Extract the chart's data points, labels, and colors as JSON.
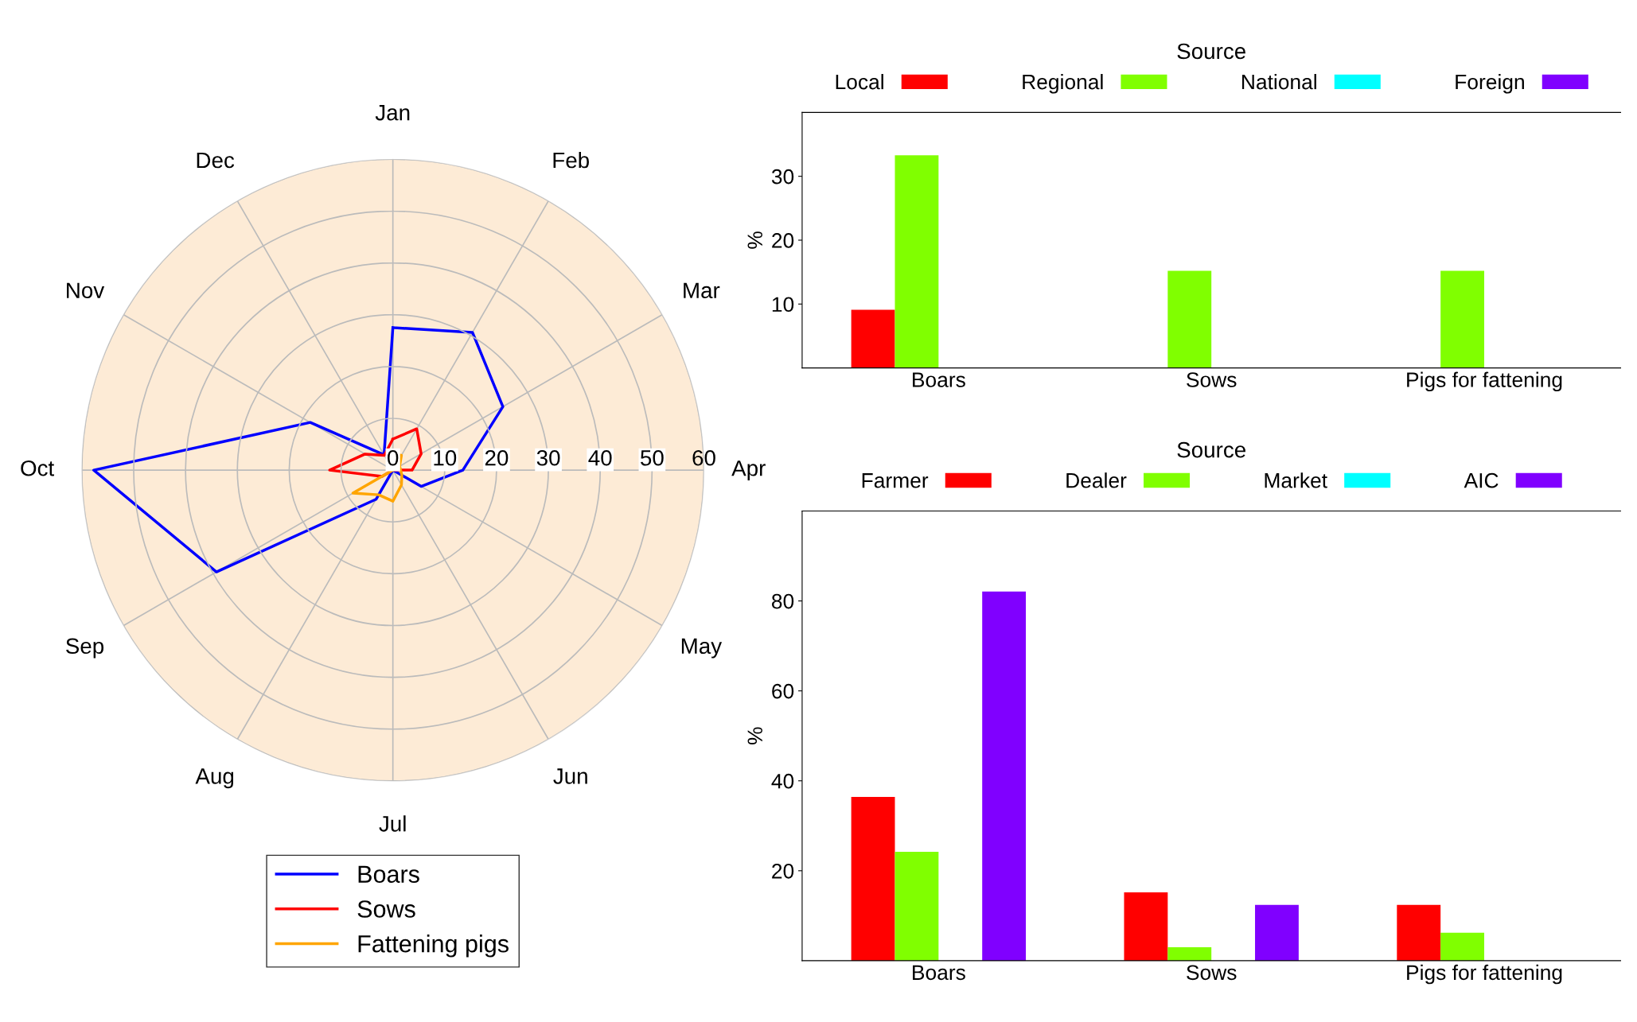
{
  "chart_data": [
    {
      "type": "radar",
      "categories": [
        "Jan",
        "Feb",
        "Mar",
        "Apr",
        "May",
        "Jun",
        "Jul",
        "Aug",
        "Sep",
        "Oct",
        "Nov",
        "Dec"
      ],
      "ylim": [
        0,
        60
      ],
      "yticks": [
        0,
        10,
        20,
        30,
        40,
        50,
        60
      ],
      "grid": true,
      "legend": "bottom",
      "series": [
        {
          "name": "Boars",
          "color": "#0000ff",
          "values": [
            27.5,
            30.7,
            24.5,
            13.5,
            6.3,
            0,
            0,
            6.5,
            39.3,
            57.7,
            18.4,
            3.4
          ]
        },
        {
          "name": "Sows",
          "color": "#ff0000",
          "values": [
            6.0,
            9.2,
            6.3,
            3.7,
            0,
            0,
            0,
            0,
            2.4,
            12.2,
            6.2,
            3.3
          ]
        },
        {
          "name": "Fattening pigs",
          "color": "#ffa500",
          "values": [
            3.0,
            3.3,
            1.5,
            1.5,
            2.0,
            3.3,
            6.0,
            5.5,
            8.9,
            0,
            0,
            0
          ]
        }
      ]
    },
    {
      "type": "bar",
      "categories": [
        "Boars",
        "Sows",
        "Pigs for fattening"
      ],
      "ylabel": "%",
      "legend_title": "Source",
      "legend": "top",
      "ylim": [
        0,
        40
      ],
      "yticks": [
        10,
        20,
        30
      ],
      "series": [
        {
          "name": "Local",
          "color": "#ff0000",
          "values": [
            9.1,
            0,
            0
          ]
        },
        {
          "name": "Regional",
          "color": "#80ff00",
          "values": [
            33.3,
            15.2,
            15.2
          ]
        },
        {
          "name": "National",
          "color": "#00ffff",
          "values": [
            0,
            0,
            0
          ]
        },
        {
          "name": "Foreign",
          "color": "#8000ff",
          "values": [
            0,
            0,
            0
          ]
        }
      ]
    },
    {
      "type": "bar",
      "categories": [
        "Boars",
        "Sows",
        "Pigs for fattening"
      ],
      "ylabel": "%",
      "legend_title": "Source",
      "legend": "top",
      "ylim": [
        0,
        100
      ],
      "yticks": [
        20,
        40,
        60,
        80
      ],
      "series": [
        {
          "name": "Farmer",
          "color": "#ff0000",
          "values": [
            36.4,
            15.2,
            12.4
          ]
        },
        {
          "name": "Dealer",
          "color": "#80ff00",
          "values": [
            24.2,
            3.0,
            6.2
          ]
        },
        {
          "name": "Market",
          "color": "#00ffff",
          "values": [
            0,
            0,
            0
          ]
        },
        {
          "name": "AIC",
          "color": "#8000ff",
          "values": [
            82.1,
            12.4,
            0
          ]
        }
      ]
    }
  ]
}
